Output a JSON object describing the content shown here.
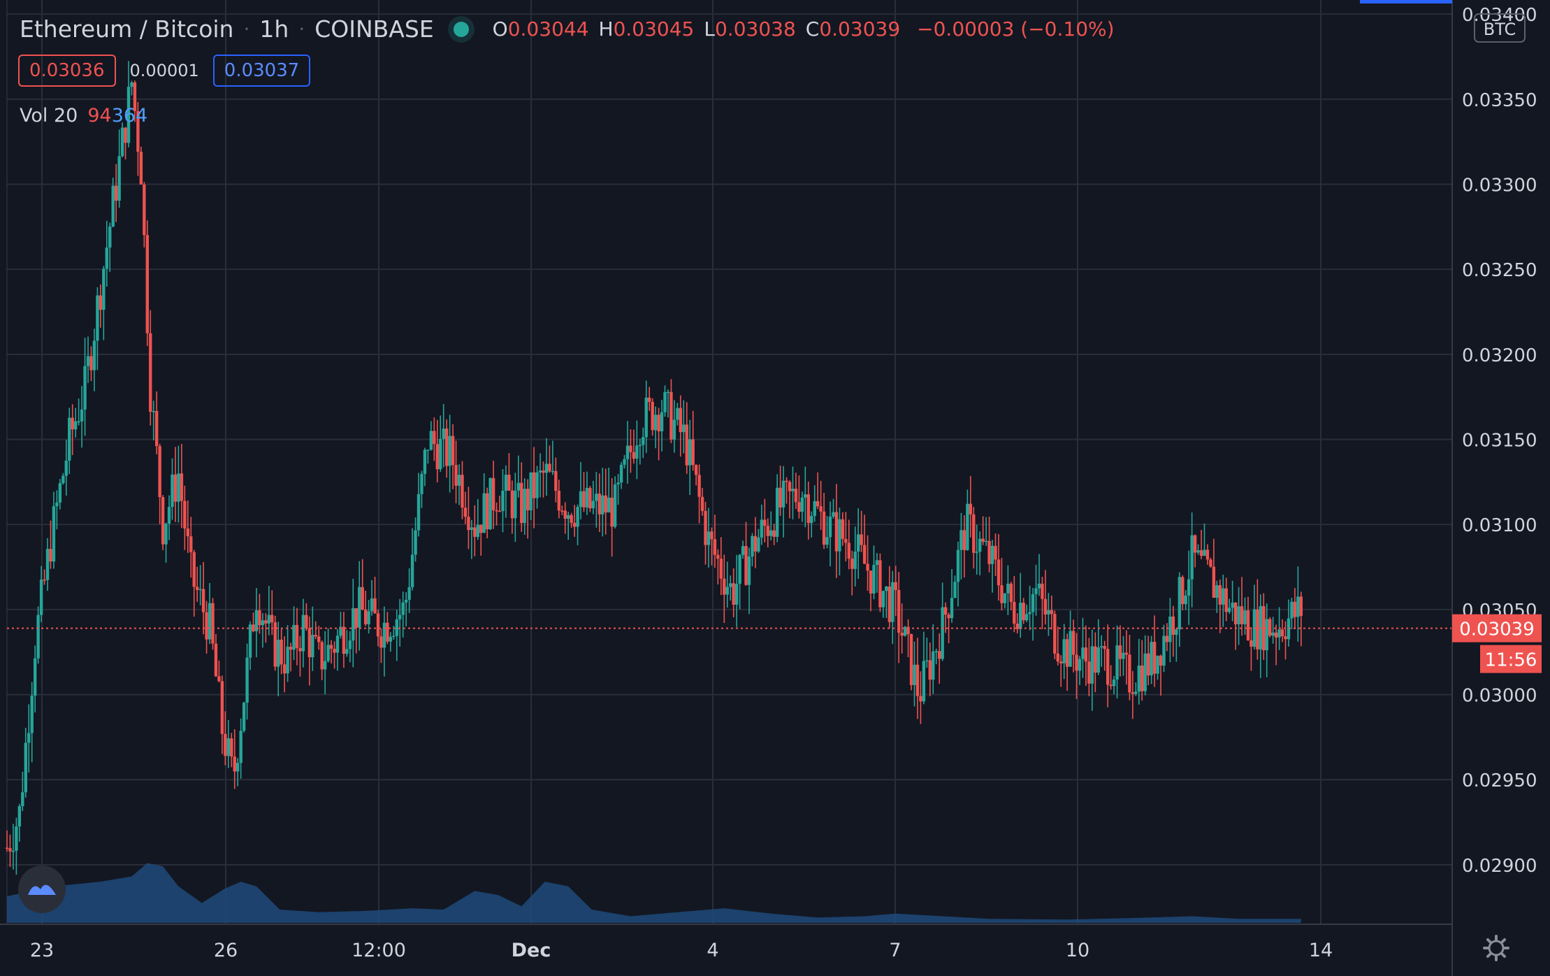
{
  "header": {
    "symbol": "Ethereum / Bitcoin",
    "interval": "1h",
    "exchange": "COINBASE",
    "status_color": "#26a69a",
    "ohlc": {
      "o_label": "O",
      "o": "0.03044",
      "h_label": "H",
      "h": "0.03045",
      "l_label": "L",
      "l": "0.03038",
      "c_label": "C",
      "c": "0.03039",
      "change": "−0.00003 (−0.10%)"
    },
    "bid": "0.03036",
    "spread": "0.00001",
    "ask": "0.03037",
    "volume_label": "Vol 20",
    "volume_value_1": "94",
    "volume_value_2": "364"
  },
  "axis": {
    "currency_badge": "BTC",
    "current_price": "0.03039",
    "countdown": "11:56"
  },
  "colors": {
    "background": "#131722",
    "up": "#26a69a",
    "down": "#ef5350",
    "volume": "#1f4a7a",
    "grid": "#2a2e39"
  },
  "chart_data": {
    "type": "candlestick",
    "title": "Ethereum / Bitcoin",
    "y_axis": {
      "ticks": [
        "0.02900",
        "0.02950",
        "0.03000",
        "0.03050",
        "0.03100",
        "0.03150",
        "0.03200",
        "0.03250",
        "0.03300",
        "0.03350",
        "0.03400"
      ],
      "range": [
        0.02865,
        0.03405
      ],
      "side": "right"
    },
    "x_axis": {
      "tick_labels": [
        "23",
        "26",
        "12:00",
        "Dec",
        "4",
        "7",
        "10",
        "14"
      ],
      "range_index": [
        0,
        900
      ]
    },
    "current_price": 0.03039,
    "close_path": [
      [
        0,
        0.0291
      ],
      [
        8,
        0.0293
      ],
      [
        18,
        0.0303
      ],
      [
        28,
        0.0309
      ],
      [
        40,
        0.0315
      ],
      [
        50,
        0.0318
      ],
      [
        60,
        0.0324
      ],
      [
        70,
        0.033
      ],
      [
        80,
        0.0336
      ],
      [
        86,
        0.0331
      ],
      [
        92,
        0.0318
      ],
      [
        100,
        0.031
      ],
      [
        110,
        0.0313
      ],
      [
        118,
        0.0307
      ],
      [
        130,
        0.0304
      ],
      [
        138,
        0.0298
      ],
      [
        145,
        0.0295
      ],
      [
        152,
        0.03
      ],
      [
        160,
        0.0306
      ],
      [
        170,
        0.0303
      ],
      [
        180,
        0.0302
      ],
      [
        190,
        0.0304
      ],
      [
        200,
        0.0302
      ],
      [
        210,
        0.0303
      ],
      [
        225,
        0.0305
      ],
      [
        240,
        0.0304
      ],
      [
        255,
        0.0305
      ],
      [
        270,
        0.0315
      ],
      [
        285,
        0.0314
      ],
      [
        300,
        0.031
      ],
      [
        315,
        0.0312
      ],
      [
        330,
        0.0311
      ],
      [
        345,
        0.0313
      ],
      [
        360,
        0.0311
      ],
      [
        375,
        0.0311
      ],
      [
        390,
        0.0311
      ],
      [
        405,
        0.0316
      ],
      [
        420,
        0.0317
      ],
      [
        435,
        0.0315
      ],
      [
        450,
        0.0309
      ],
      [
        465,
        0.0306
      ],
      [
        480,
        0.0309
      ],
      [
        495,
        0.0311
      ],
      [
        510,
        0.0312
      ],
      [
        525,
        0.031
      ],
      [
        540,
        0.0309
      ],
      [
        555,
        0.0307
      ],
      [
        570,
        0.0305
      ],
      [
        585,
        0.03
      ],
      [
        600,
        0.0304
      ],
      [
        615,
        0.031
      ],
      [
        630,
        0.0308
      ],
      [
        645,
        0.0305
      ],
      [
        660,
        0.0306
      ],
      [
        675,
        0.0303
      ],
      [
        690,
        0.0302
      ],
      [
        705,
        0.0302
      ],
      [
        720,
        0.0301
      ],
      [
        735,
        0.0302
      ],
      [
        750,
        0.0305
      ],
      [
        760,
        0.0308
      ],
      [
        770,
        0.0307
      ],
      [
        785,
        0.0305
      ],
      [
        800,
        0.0304
      ],
      [
        815,
        0.0304
      ],
      [
        830,
        0.0305
      ]
    ],
    "volume_profile": [
      [
        0,
        0.4
      ],
      [
        30,
        0.55
      ],
      [
        60,
        0.62
      ],
      [
        80,
        0.7
      ],
      [
        90,
        0.9
      ],
      [
        100,
        0.85
      ],
      [
        110,
        0.55
      ],
      [
        125,
        0.3
      ],
      [
        140,
        0.52
      ],
      [
        150,
        0.62
      ],
      [
        160,
        0.55
      ],
      [
        175,
        0.2
      ],
      [
        200,
        0.16
      ],
      [
        230,
        0.18
      ],
      [
        260,
        0.22
      ],
      [
        280,
        0.2
      ],
      [
        300,
        0.48
      ],
      [
        315,
        0.42
      ],
      [
        330,
        0.25
      ],
      [
        345,
        0.62
      ],
      [
        360,
        0.55
      ],
      [
        375,
        0.2
      ],
      [
        400,
        0.1
      ],
      [
        430,
        0.16
      ],
      [
        460,
        0.22
      ],
      [
        490,
        0.14
      ],
      [
        520,
        0.08
      ],
      [
        550,
        0.1
      ],
      [
        570,
        0.14
      ],
      [
        600,
        0.1
      ],
      [
        630,
        0.06
      ],
      [
        680,
        0.05
      ],
      [
        720,
        0.07
      ],
      [
        760,
        0.1
      ],
      [
        790,
        0.06
      ],
      [
        830,
        0.06
      ]
    ]
  }
}
